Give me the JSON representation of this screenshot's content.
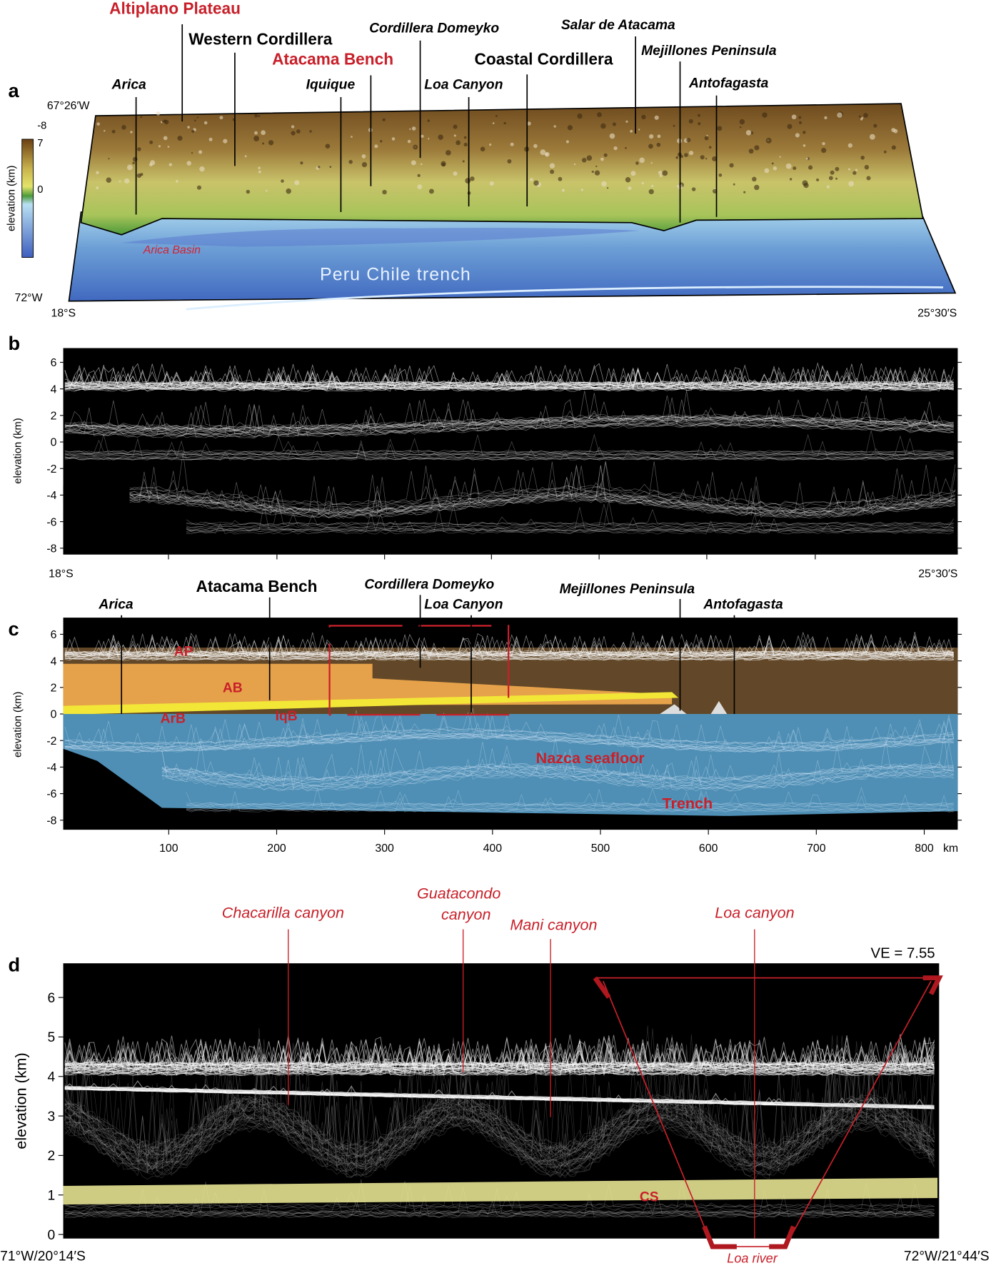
{
  "panel_a": {
    "label": "a",
    "places": [
      "Altiplano Plateau",
      "Western Cordillera",
      "Atacama Bench",
      "Cordillera Domeyko",
      "Salar de Atacama",
      "Coastal Cordillera",
      "Mejillones Peninsula",
      "Arica",
      "Iquique",
      "Loa Canyon",
      "Antofagasta"
    ],
    "lon_top": "67°26′W",
    "lon_bottom": "72°W",
    "lat_left": "18°S",
    "lat_right": "25°30′S",
    "colorbar_title": "elevation (km)",
    "colorbar_ticks": [
      7,
      0,
      -8
    ],
    "map_labels": [
      "Arica Basin",
      "Peru  Chile trench"
    ]
  },
  "panel_b": {
    "label": "b",
    "y_label": "elevation (km)",
    "yticks": [
      6,
      4,
      2,
      0,
      -2,
      -4,
      -6,
      -8
    ],
    "lat_left": "18°S",
    "lat_right": "25°30′S"
  },
  "panel_c": {
    "label": "c",
    "places": [
      "Arica",
      "Atacama Bench",
      "Cordillera Domeyko",
      "Loa Canyon",
      "Mejillones Peninsula",
      "Antofagasta"
    ],
    "units": [
      "AP",
      "AB",
      "ArB",
      "IqB",
      "Nazca seafloor",
      "Trench"
    ],
    "y_label": "elevation (km)",
    "yticks": [
      6,
      4,
      2,
      0,
      -2,
      -4,
      -6,
      -8
    ],
    "xticks": [
      100,
      200,
      300,
      400,
      500,
      600,
      700,
      800
    ],
    "x_unit": "km"
  },
  "panel_d": {
    "label": "d",
    "canyons": [
      "Chacarilla canyon",
      "Guatacondo canyon",
      "Mani canyon",
      "Loa canyon"
    ],
    "ve": "VE = 7.55",
    "y_label": "elevation (km)",
    "yticks": [
      0,
      1,
      2,
      3,
      4,
      5,
      6
    ],
    "left": "71°W/20°14′S",
    "right": "72°W/21°44′S",
    "cs": "CS",
    "river": "Loa river"
  }
}
